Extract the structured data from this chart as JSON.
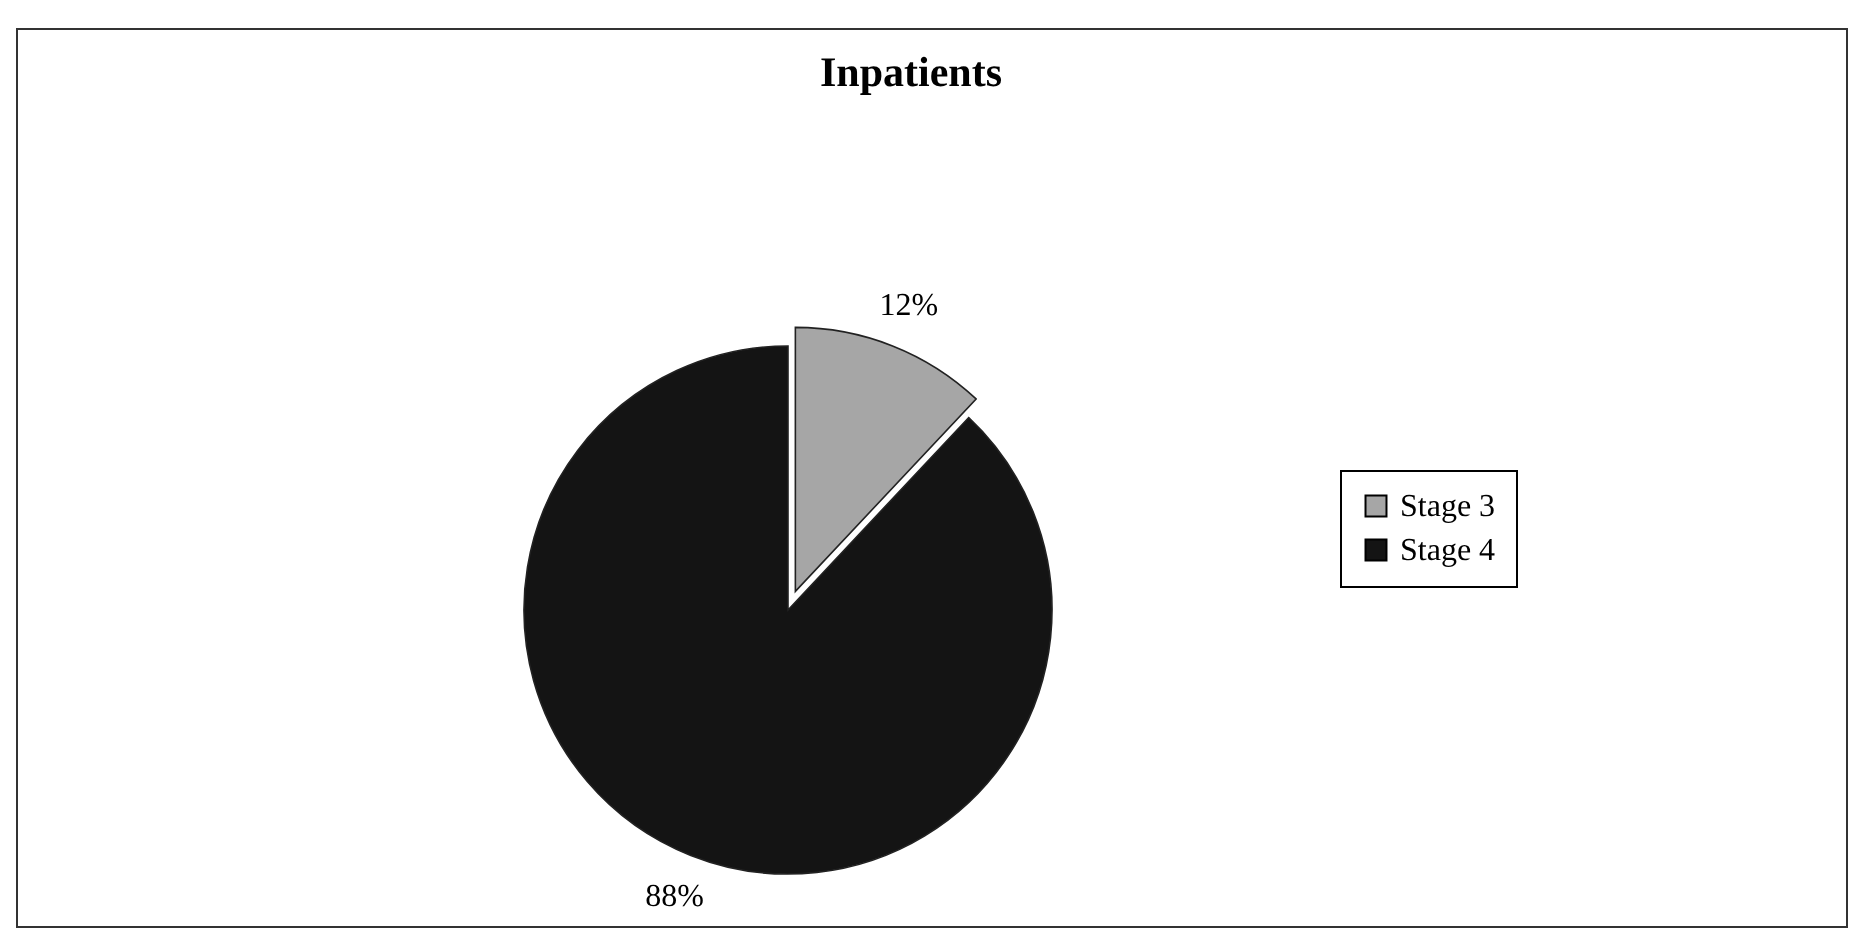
{
  "chart_data": {
    "type": "pie",
    "title": "Inpatients",
    "categories": [
      "Stage 3",
      "Stage 4"
    ],
    "values": [
      12,
      88
    ],
    "colors": [
      "#a6a6a6",
      "#141414"
    ],
    "value_labels": [
      "12%",
      "88%"
    ],
    "legend": "right"
  }
}
